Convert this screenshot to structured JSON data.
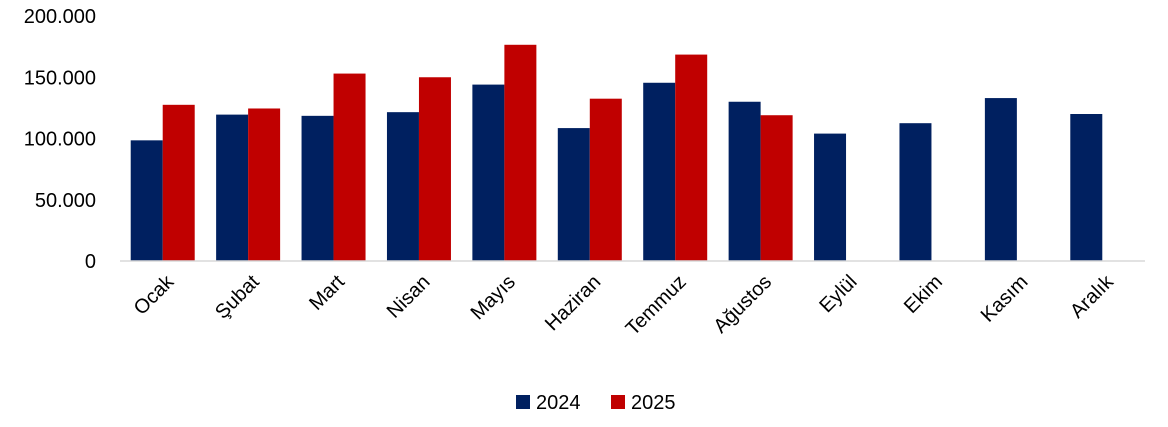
{
  "chart_data": {
    "type": "bar",
    "title": "",
    "xlabel": "",
    "ylabel": "",
    "categories": [
      "Ocak",
      "Şubat",
      "Mart",
      "Nisan",
      "Mayıs",
      "Haziran",
      "Temmuz",
      "Ağustos",
      "Eylül",
      "Ekim",
      "Kasım",
      "Aralık"
    ],
    "series": [
      {
        "name": "2024",
        "color": "#002060",
        "values": [
          98500,
          119500,
          118500,
          121500,
          144000,
          108500,
          145500,
          130000,
          104000,
          112500,
          133000,
          120000
        ]
      },
      {
        "name": "2025",
        "color": "#C00000",
        "values": [
          127500,
          124500,
          153000,
          150000,
          176500,
          132500,
          168500,
          119000,
          null,
          null,
          null,
          null
        ]
      }
    ],
    "ylim": [
      0,
      200000
    ],
    "yticks": [
      0,
      50000,
      100000,
      150000,
      200000
    ],
    "ytick_labels": [
      "0",
      "50.000",
      "100.000",
      "150.000",
      "200.000"
    ],
    "grid": false,
    "legend_position": "bottom"
  }
}
